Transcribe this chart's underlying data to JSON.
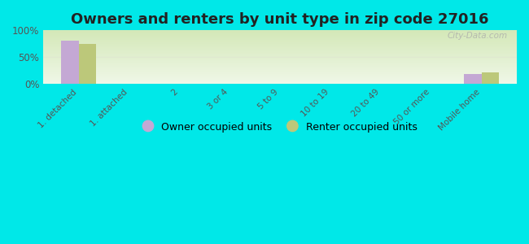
{
  "title": "Owners and renters by unit type in zip code 27016",
  "categories": [
    "1. detached",
    "1. attached",
    "2",
    "3 or 4",
    "5 to 9",
    "10 to 19",
    "20 to 49",
    "50 or more",
    "Mobile home"
  ],
  "owner_values": [
    80,
    0,
    0,
    0,
    0,
    0,
    0,
    0,
    18
  ],
  "renter_values": [
    75,
    0,
    0,
    0,
    0,
    0,
    0,
    0,
    22
  ],
  "owner_color": "#c4a8d4",
  "renter_color": "#bcc87a",
  "background_outer": "#00e8e8",
  "gradient_top": "#d4e8b8",
  "gradient_bottom": "#f0f8e8",
  "ylim": [
    0,
    100
  ],
  "yticks": [
    0,
    50,
    100
  ],
  "ytick_labels": [
    "0%",
    "50%",
    "100%"
  ],
  "bar_width": 0.35,
  "legend_owner": "Owner occupied units",
  "legend_renter": "Renter occupied units",
  "title_fontsize": 13,
  "watermark": "City-Data.com",
  "hline_color": "#e0e8d0",
  "tick_label_color": "#555555",
  "title_color": "#222222"
}
